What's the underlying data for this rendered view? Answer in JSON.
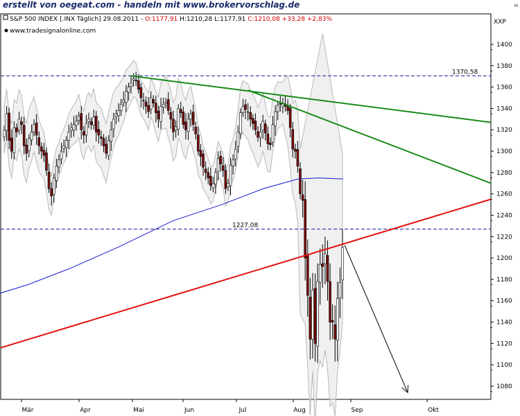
{
  "banner": "erstellt von oegeat.com - handeln mit www.brokervorschlag.de",
  "header": {
    "instrument": "S&P 500 INDEX [.INX Täglich] 29.08.2011 -",
    "open": "O:1177,91",
    "high": "H:1210,28",
    "low": "L:1177,91",
    "close": "C:1210,08",
    "change": "+33,28",
    "change_pct": "+2,83%",
    "source": "www.tradesignalonline.com",
    "ticker": "XXP",
    "corner": "In"
  },
  "colors": {
    "up": "#ffffff",
    "down": "#7a0f0f",
    "green_line": "#1a8a1a",
    "red_line": "#e31010",
    "ma_line": "#1a1ad0",
    "band": "#b8b8b8",
    "level_line": "#1a1a90",
    "header_red": "#d00000"
  },
  "chart_data": {
    "type": "candlestick",
    "y_ticks": [
      1080,
      1100,
      1120,
      1140,
      1160,
      1180,
      1200,
      1220,
      1240,
      1260,
      1280,
      1300,
      1320,
      1340,
      1360,
      1380,
      1400
    ],
    "ylim": [
      1070,
      1412
    ],
    "x_labels": [
      "Mär",
      "Apr",
      "Mai",
      "Jun",
      "Jul",
      "Aug",
      "Sep",
      "Okt"
    ],
    "levels": [
      {
        "label": "1370,58",
        "value": 1370.58
      },
      {
        "label": "1227,08",
        "value": 1227.08
      }
    ],
    "closes": [
      1320,
      1335,
      1310,
      1300,
      1322,
      1318,
      1330,
      1325,
      1305,
      1298,
      1312,
      1318,
      1325,
      1315,
      1305,
      1300,
      1296,
      1282,
      1265,
      1258,
      1275,
      1286,
      1292,
      1300,
      1305,
      1310,
      1318,
      1322,
      1325,
      1328,
      1333,
      1320,
      1315,
      1326,
      1330,
      1325,
      1332,
      1318,
      1315,
      1312,
      1305,
      1298,
      1310,
      1320,
      1330,
      1335,
      1338,
      1344,
      1348,
      1356,
      1360,
      1364,
      1368,
      1366,
      1358,
      1350,
      1347,
      1342,
      1337,
      1350,
      1345,
      1336,
      1330,
      1342,
      1344,
      1346,
      1338,
      1330,
      1318,
      1323,
      1340,
      1336,
      1325,
      1320,
      1330,
      1335,
      1325,
      1316,
      1300,
      1295,
      1285,
      1280,
      1275,
      1268,
      1270,
      1280,
      1293,
      1288,
      1282,
      1265,
      1270,
      1287,
      1292,
      1302,
      1318,
      1336,
      1342,
      1339,
      1337,
      1330,
      1326,
      1320,
      1313,
      1318,
      1328,
      1317,
      1307,
      1306,
      1325,
      1337,
      1343,
      1344,
      1345,
      1342,
      1338,
      1322,
      1302,
      1300,
      1286,
      1260,
      1254,
      1200,
      1165,
      1124,
      1170,
      1120,
      1178,
      1194,
      1192,
      1204,
      1178,
      1140,
      1140,
      1124,
      1162,
      1177,
      1210
    ],
    "moving_average_200": [
      [
        0,
        1167
      ],
      [
        40,
        1175
      ],
      [
        100,
        1190
      ],
      [
        170,
        1210
      ],
      [
        250,
        1235
      ],
      [
        320,
        1250
      ],
      [
        380,
        1265
      ],
      [
        430,
        1274
      ],
      [
        460,
        1275
      ],
      [
        495,
        1274
      ]
    ],
    "trendlines": [
      {
        "color": "green",
        "from": [
          "Mai",
          1370.58
        ],
        "to": [
          "right edge",
          1327
        ]
      },
      {
        "color": "green",
        "from": [
          "Jul",
          1357
        ],
        "to": [
          "right edge",
          1270
        ]
      },
      {
        "color": "red",
        "from": [
          "left edge",
          1116
        ],
        "to": [
          "right edge",
          1255
        ]
      }
    ],
    "forecast_arrow": {
      "from": 1212,
      "to": 1074
    }
  }
}
